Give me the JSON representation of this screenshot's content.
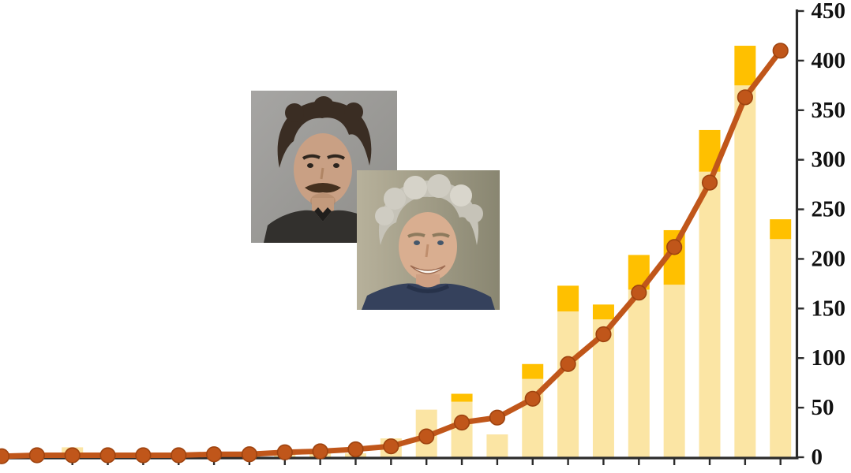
{
  "page": {
    "background": "#ffffff",
    "description_of_visible_content": "Combo chart: pale-yellow bars with gold caps and a dark-orange line with round markers rising exponentially; right-hand y-axis 0 to 450; two overlapping portrait photos floating over the chart"
  },
  "colors": {
    "bar_light": "#FBE5A4",
    "bar_cap": "#FFC000",
    "line": "#C0561A",
    "marker_edge": "#9E430F",
    "axis": "#2B2B2B",
    "tick_label": "#111111"
  },
  "portraits": [
    {
      "name": "portrait-1",
      "alt": "Man with tousled dark brown hair and mustache, dark collared shirt, plain gray background"
    },
    {
      "name": "portrait-2",
      "alt": "Smiling man with curly gray hair, navy crew-neck shirt, olive-gray background"
    }
  ],
  "chart_data": {
    "type": "bar",
    "subtype": "stacked-bars-with-line-overlay",
    "title": "",
    "xlabel": "",
    "ylabel": "",
    "n_points": 23,
    "grid": false,
    "legend": "none",
    "x_axis": {
      "tick_labels_visible": false,
      "ticks_at_every_point_from_index": 2
    },
    "y_axis": {
      "side": "right",
      "min": 0,
      "max": 450,
      "step": 50,
      "tick_labels": [
        "0",
        "50",
        "100",
        "150",
        "200",
        "250",
        "300",
        "350",
        "400",
        "450"
      ]
    },
    "series": [
      {
        "name": "bars-light-lower-segment",
        "type": "bar",
        "color": "#FBE5A4",
        "values": [
          3,
          2,
          10,
          2,
          2,
          2,
          2,
          3,
          5,
          4,
          4,
          19,
          48,
          56,
          23,
          79,
          147,
          139,
          169,
          174,
          288,
          375,
          220
        ]
      },
      {
        "name": "bars-gold-cap-total",
        "type": "bar",
        "color": "#FFC000",
        "totals": [
          3,
          2,
          10,
          2,
          2,
          2,
          2,
          3,
          5,
          4,
          4,
          19,
          48,
          64,
          23,
          94,
          173,
          154,
          204,
          229,
          330,
          415,
          240
        ]
      },
      {
        "name": "trend-line",
        "type": "line",
        "color": "#C0561A",
        "marker": "circle",
        "values": [
          1,
          2,
          2,
          2,
          2,
          2,
          3,
          3,
          5,
          6,
          8,
          11,
          21,
          35,
          40,
          59,
          94,
          124,
          166,
          212,
          277,
          363,
          410
        ]
      }
    ]
  }
}
